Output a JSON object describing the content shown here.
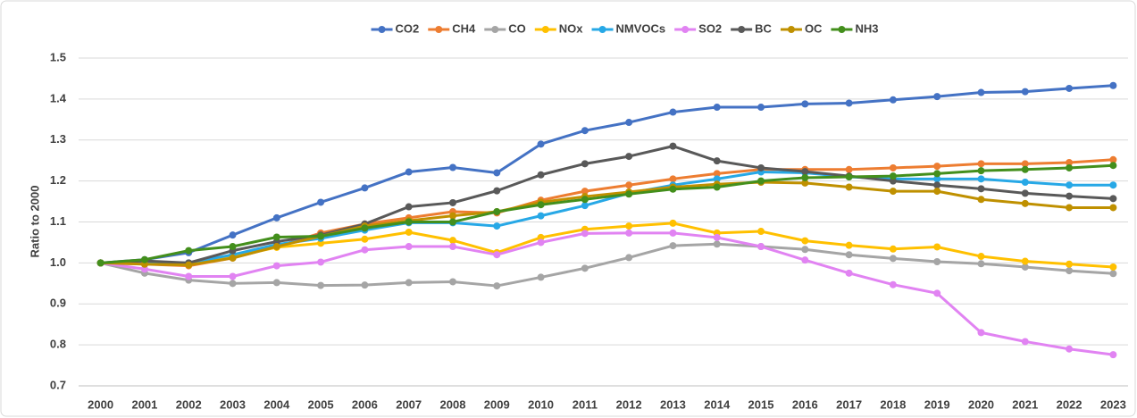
{
  "chart_data": {
    "type": "line",
    "y_label": "Ratio to 2000",
    "categories": [
      "2000",
      "2001",
      "2002",
      "2003",
      "2004",
      "2005",
      "2006",
      "2007",
      "2008",
      "2009",
      "2010",
      "2011",
      "2012",
      "2013",
      "2014",
      "2015",
      "2016",
      "2017",
      "2018",
      "2019",
      "2020",
      "2021",
      "2022",
      "2023"
    ],
    "ylim": [
      0.7,
      1.5
    ],
    "yticks": [
      0.7,
      0.8,
      0.9,
      {
        "value": 1.0,
        "label": "1.0"
      },
      1.1,
      1.2,
      1.3,
      1.4,
      1.5
    ],
    "grid": true,
    "legend": "top",
    "series": [
      {
        "name": "CO2",
        "color": "#4472c4",
        "values": [
          1.0,
          1.008,
          1.025,
          1.068,
          1.11,
          1.148,
          1.183,
          1.222,
          1.233,
          1.22,
          1.29,
          1.323,
          1.343,
          1.368,
          1.38,
          1.38,
          1.388,
          1.39,
          1.398,
          1.406,
          1.416,
          1.418,
          1.426,
          1.433
        ]
      },
      {
        "name": "CH4",
        "color": "#ed7d31",
        "values": [
          1.0,
          0.997,
          0.993,
          1.012,
          1.04,
          1.073,
          1.095,
          1.11,
          1.125,
          1.122,
          1.153,
          1.175,
          1.19,
          1.205,
          1.218,
          1.228,
          1.228,
          1.228,
          1.232,
          1.236,
          1.242,
          1.242,
          1.245,
          1.252
        ]
      },
      {
        "name": "CO",
        "color": "#a5a5a5",
        "values": [
          1.0,
          0.975,
          0.958,
          0.95,
          0.952,
          0.945,
          0.946,
          0.952,
          0.954,
          0.944,
          0.965,
          0.987,
          1.013,
          1.042,
          1.046,
          1.04,
          1.033,
          1.02,
          1.011,
          1.003,
          0.998,
          0.99,
          0.981,
          0.974
        ]
      },
      {
        "name": "NOx",
        "color": "#ffc000",
        "values": [
          1.0,
          0.998,
          0.995,
          1.015,
          1.038,
          1.048,
          1.058,
          1.075,
          1.055,
          1.025,
          1.062,
          1.082,
          1.09,
          1.097,
          1.073,
          1.077,
          1.054,
          1.043,
          1.034,
          1.039,
          1.016,
          1.004,
          0.997,
          0.99
        ]
      },
      {
        "name": "NMVOCs",
        "color": "#27a8e6",
        "values": [
          1.0,
          1.0,
          1.0,
          1.02,
          1.045,
          1.06,
          1.08,
          1.098,
          1.098,
          1.09,
          1.115,
          1.14,
          1.17,
          1.19,
          1.205,
          1.222,
          1.22,
          1.21,
          1.205,
          1.205,
          1.205,
          1.197,
          1.19,
          1.19
        ]
      },
      {
        "name": "SO2",
        "color": "#e183f2",
        "values": [
          1.0,
          0.985,
          0.967,
          0.967,
          0.993,
          1.002,
          1.032,
          1.04,
          1.04,
          1.02,
          1.05,
          1.072,
          1.073,
          1.073,
          1.062,
          1.04,
          1.007,
          0.975,
          0.947,
          0.926,
          0.83,
          0.808,
          0.79,
          0.776
        ]
      },
      {
        "name": "BC",
        "color": "#595959",
        "values": [
          1.0,
          1.005,
          1.0,
          1.03,
          1.052,
          1.068,
          1.095,
          1.137,
          1.147,
          1.176,
          1.215,
          1.242,
          1.26,
          1.285,
          1.249,
          1.232,
          1.223,
          1.212,
          1.2,
          1.19,
          1.181,
          1.17,
          1.163,
          1.157
        ]
      },
      {
        "name": "OC",
        "color": "#bf9000",
        "values": [
          1.0,
          0.997,
          0.995,
          1.012,
          1.04,
          1.065,
          1.09,
          1.103,
          1.115,
          1.125,
          1.148,
          1.162,
          1.173,
          1.185,
          1.192,
          1.197,
          1.195,
          1.185,
          1.175,
          1.175,
          1.155,
          1.145,
          1.135,
          1.135
        ]
      },
      {
        "name": "NH3",
        "color": "#438f1c",
        "values": [
          1.0,
          1.008,
          1.03,
          1.04,
          1.063,
          1.065,
          1.085,
          1.1,
          1.1,
          1.125,
          1.142,
          1.155,
          1.168,
          1.18,
          1.185,
          1.2,
          1.208,
          1.21,
          1.212,
          1.218,
          1.225,
          1.228,
          1.232,
          1.238
        ]
      }
    ]
  }
}
